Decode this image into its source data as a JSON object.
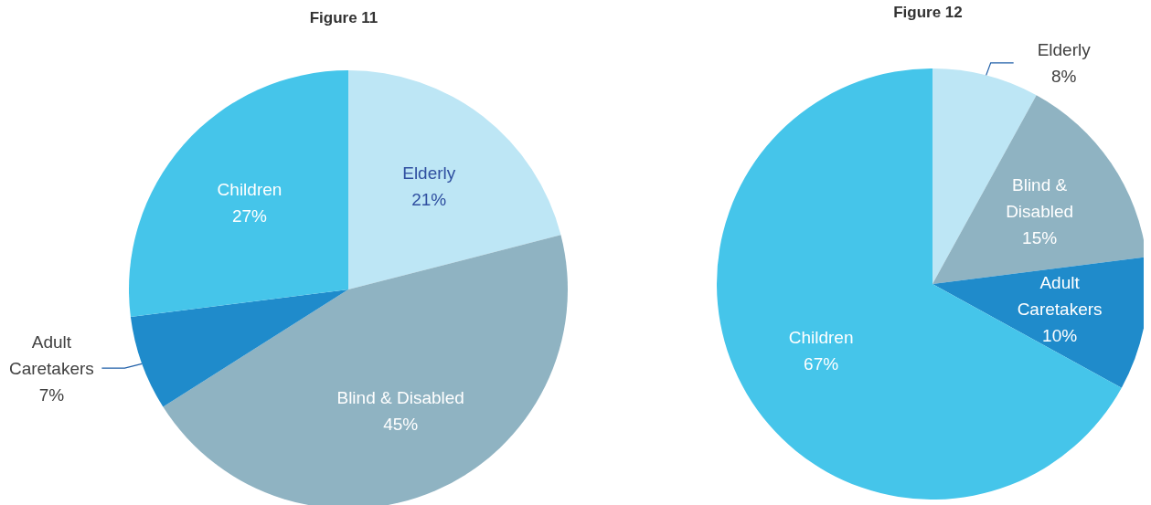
{
  "chart_data": [
    {
      "type": "pie",
      "title": "Figure 11",
      "categories": [
        "Elderly",
        "Blind & Disabled",
        "Adult Caretakers",
        "Children"
      ],
      "values": [
        21,
        45,
        7,
        27
      ],
      "value_labels": [
        "21%",
        "45%",
        "7%",
        "27%"
      ],
      "colors": [
        "#bde6f5",
        "#8fb3c2",
        "#1f8bcb",
        "#45c5ea"
      ]
    },
    {
      "type": "pie",
      "title": "Figure 12",
      "categories": [
        "Elderly",
        "Blind & Disabled",
        "Adult Caretakers",
        "Children"
      ],
      "values": [
        8,
        15,
        10,
        67
      ],
      "value_labels": [
        "8%",
        "15%",
        "10%",
        "67%"
      ],
      "colors": [
        "#bde6f5",
        "#8fb3c2",
        "#1f8bcb",
        "#45c5ea"
      ]
    }
  ]
}
